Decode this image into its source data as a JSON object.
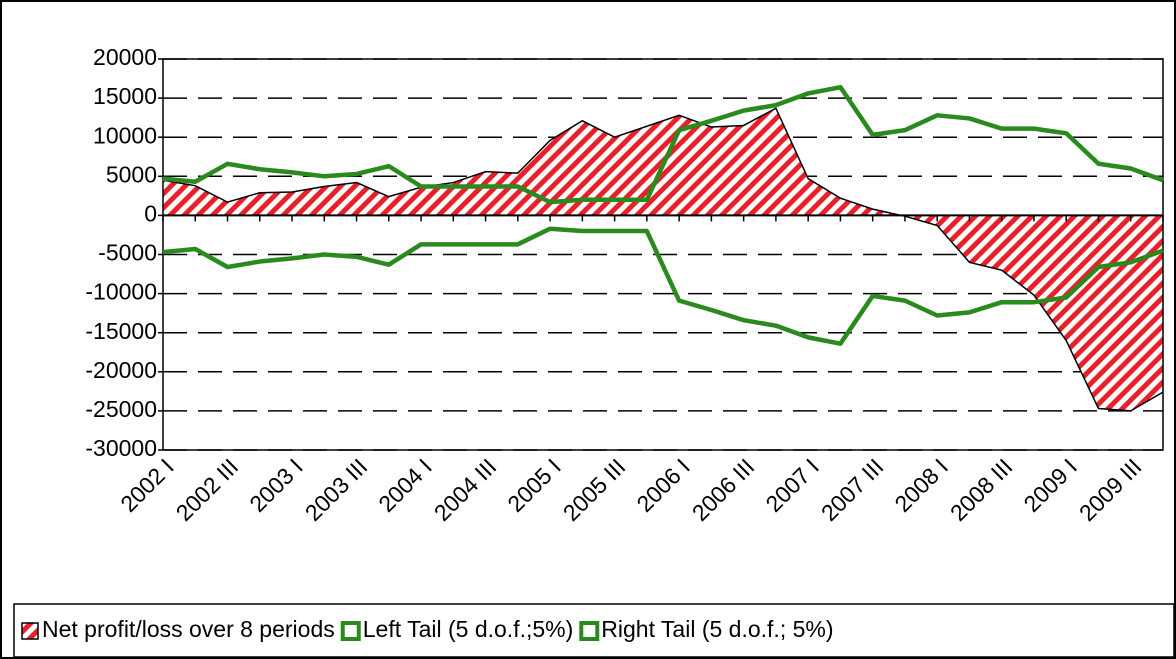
{
  "chart_data": {
    "type": "line",
    "categories": [
      "2002 I",
      null,
      "2002 III",
      null,
      "2003 I",
      null,
      "2003 III",
      null,
      "2004 I",
      null,
      "2004 III",
      null,
      "2005 I",
      null,
      "2005 III",
      null,
      "2006 I",
      null,
      "2006 III",
      null,
      "2007 I",
      null,
      "2007 III",
      null,
      "2008 I",
      null,
      "2008 III",
      null,
      "2009 I",
      null,
      "2009 III",
      null
    ],
    "ylim": [
      -30000,
      20000
    ],
    "yticks": [
      -30000,
      -25000,
      -20000,
      -15000,
      -10000,
      -5000,
      0,
      5000,
      10000,
      15000,
      20000
    ],
    "grid": true,
    "legend": "bottom",
    "series": [
      {
        "name": "Net profit/loss over 8 periods",
        "type": "area",
        "color": "#e8202a",
        "values": [
          4500,
          3800,
          1700,
          2900,
          3000,
          3700,
          4200,
          2400,
          3600,
          4200,
          5600,
          5400,
          9600,
          12100,
          10000,
          11400,
          12800,
          11300,
          11500,
          13700,
          4700,
          2200,
          800,
          -100,
          -1300,
          -6000,
          -7000,
          -10200,
          -16000,
          -24700,
          -25000,
          -22600
        ]
      },
      {
        "name": "Left Tail (5 d.o.f.;5%)",
        "type": "line",
        "color": "#2a8a1e",
        "values": [
          -4700,
          -4300,
          -6600,
          -5900,
          -5500,
          -5000,
          -5300,
          -6300,
          -3700,
          -3700,
          -3700,
          -3700,
          -1700,
          -2000,
          -2000,
          -2000,
          -10900,
          -12100,
          -13400,
          -14100,
          -15600,
          -16400,
          -10300,
          -10900,
          -12800,
          -12400,
          -11100,
          -11100,
          -10500,
          -6600,
          -6000,
          -4500
        ]
      },
      {
        "name": "Right Tail (5 d.o.f.; 5%)",
        "type": "line",
        "color": "#2a8a1e",
        "values": [
          4700,
          4300,
          6600,
          5900,
          5500,
          5000,
          5300,
          6300,
          3700,
          3700,
          3700,
          3700,
          1700,
          2000,
          2000,
          2000,
          10900,
          12100,
          13400,
          14100,
          15600,
          16400,
          10300,
          10900,
          12800,
          12400,
          11100,
          11100,
          10500,
          6600,
          6000,
          4500
        ]
      }
    ]
  }
}
